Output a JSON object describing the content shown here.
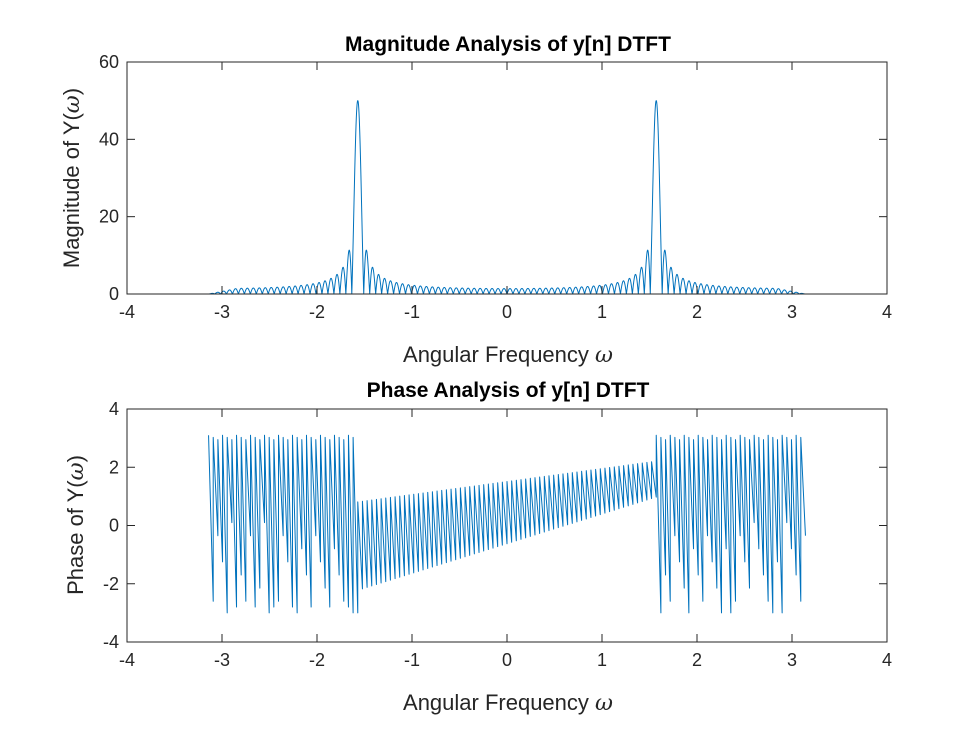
{
  "colors": {
    "series": "#0072BD",
    "axes": "#262626",
    "background": "#ffffff"
  },
  "chart_data": [
    {
      "type": "line",
      "title": "Magnitude Analysis of y[n] DTFT",
      "xlabel": "Angular Frequency ",
      "xlabel_symbol": "ω",
      "ylabel": "Magnitude of Y(",
      "ylabel_symbol": "ω",
      "ylabel_close": ")",
      "xlim": [
        -4,
        4
      ],
      "ylim": [
        0,
        60
      ],
      "xticks": [
        -4,
        -3,
        -2,
        -1,
        0,
        1,
        2,
        3,
        4
      ],
      "yticks": [
        0,
        20,
        40,
        60
      ],
      "xtick_labels": [
        "-4",
        "-3",
        "-2",
        "-1",
        "0",
        "1",
        "2",
        "3",
        "4"
      ],
      "ytick_labels": [
        "0",
        "20",
        "40",
        "60"
      ],
      "grid": false,
      "x_range": [
        -3.1416,
        3.1416
      ],
      "series": [
        {
          "peaks": [
            {
              "x": -1.5708,
              "y": 50
            },
            {
              "x": 1.5708,
              "y": 50
            }
          ],
          "sidelobes_near_peak": [
            11.0,
            10.5,
            7.0,
            6.5
          ],
          "background_level": [
            0.5,
            3.0
          ]
        }
      ]
    },
    {
      "type": "line",
      "title": "Phase Analysis of y[n] DTFT",
      "xlabel": "Angular Frequency ",
      "xlabel_symbol": "ω",
      "ylabel": "Phase of Y(",
      "ylabel_symbol": "ω",
      "ylabel_close": ")",
      "xlim": [
        -4,
        4
      ],
      "ylim": [
        -4,
        4
      ],
      "xticks": [
        -4,
        -3,
        -2,
        -1,
        0,
        1,
        2,
        3,
        4
      ],
      "yticks": [
        -4,
        -2,
        0,
        2,
        4
      ],
      "xtick_labels": [
        "-4",
        "-3",
        "-2",
        "-1",
        "0",
        "1",
        "2",
        "3",
        "4"
      ],
      "ytick_labels": [
        "-4",
        "-2",
        "0",
        "2",
        "4"
      ],
      "grid": false,
      "x_range": [
        -3.1416,
        3.1416
      ],
      "series": [
        {
          "segments": [
            {
              "x_from": -3.1416,
              "x_to": -1.5708,
              "top": 3.1,
              "bottom": -3.0
            },
            {
              "x_from": -1.5708,
              "x_to": 1.5708,
              "low_start": -2.2,
              "low_end": 1.0,
              "high_start": 0.8,
              "high_end": 2.2
            },
            {
              "x_from": 1.5708,
              "x_to": 3.1416,
              "top": 3.1,
              "bottom": -3.0
            }
          ]
        }
      ]
    }
  ]
}
